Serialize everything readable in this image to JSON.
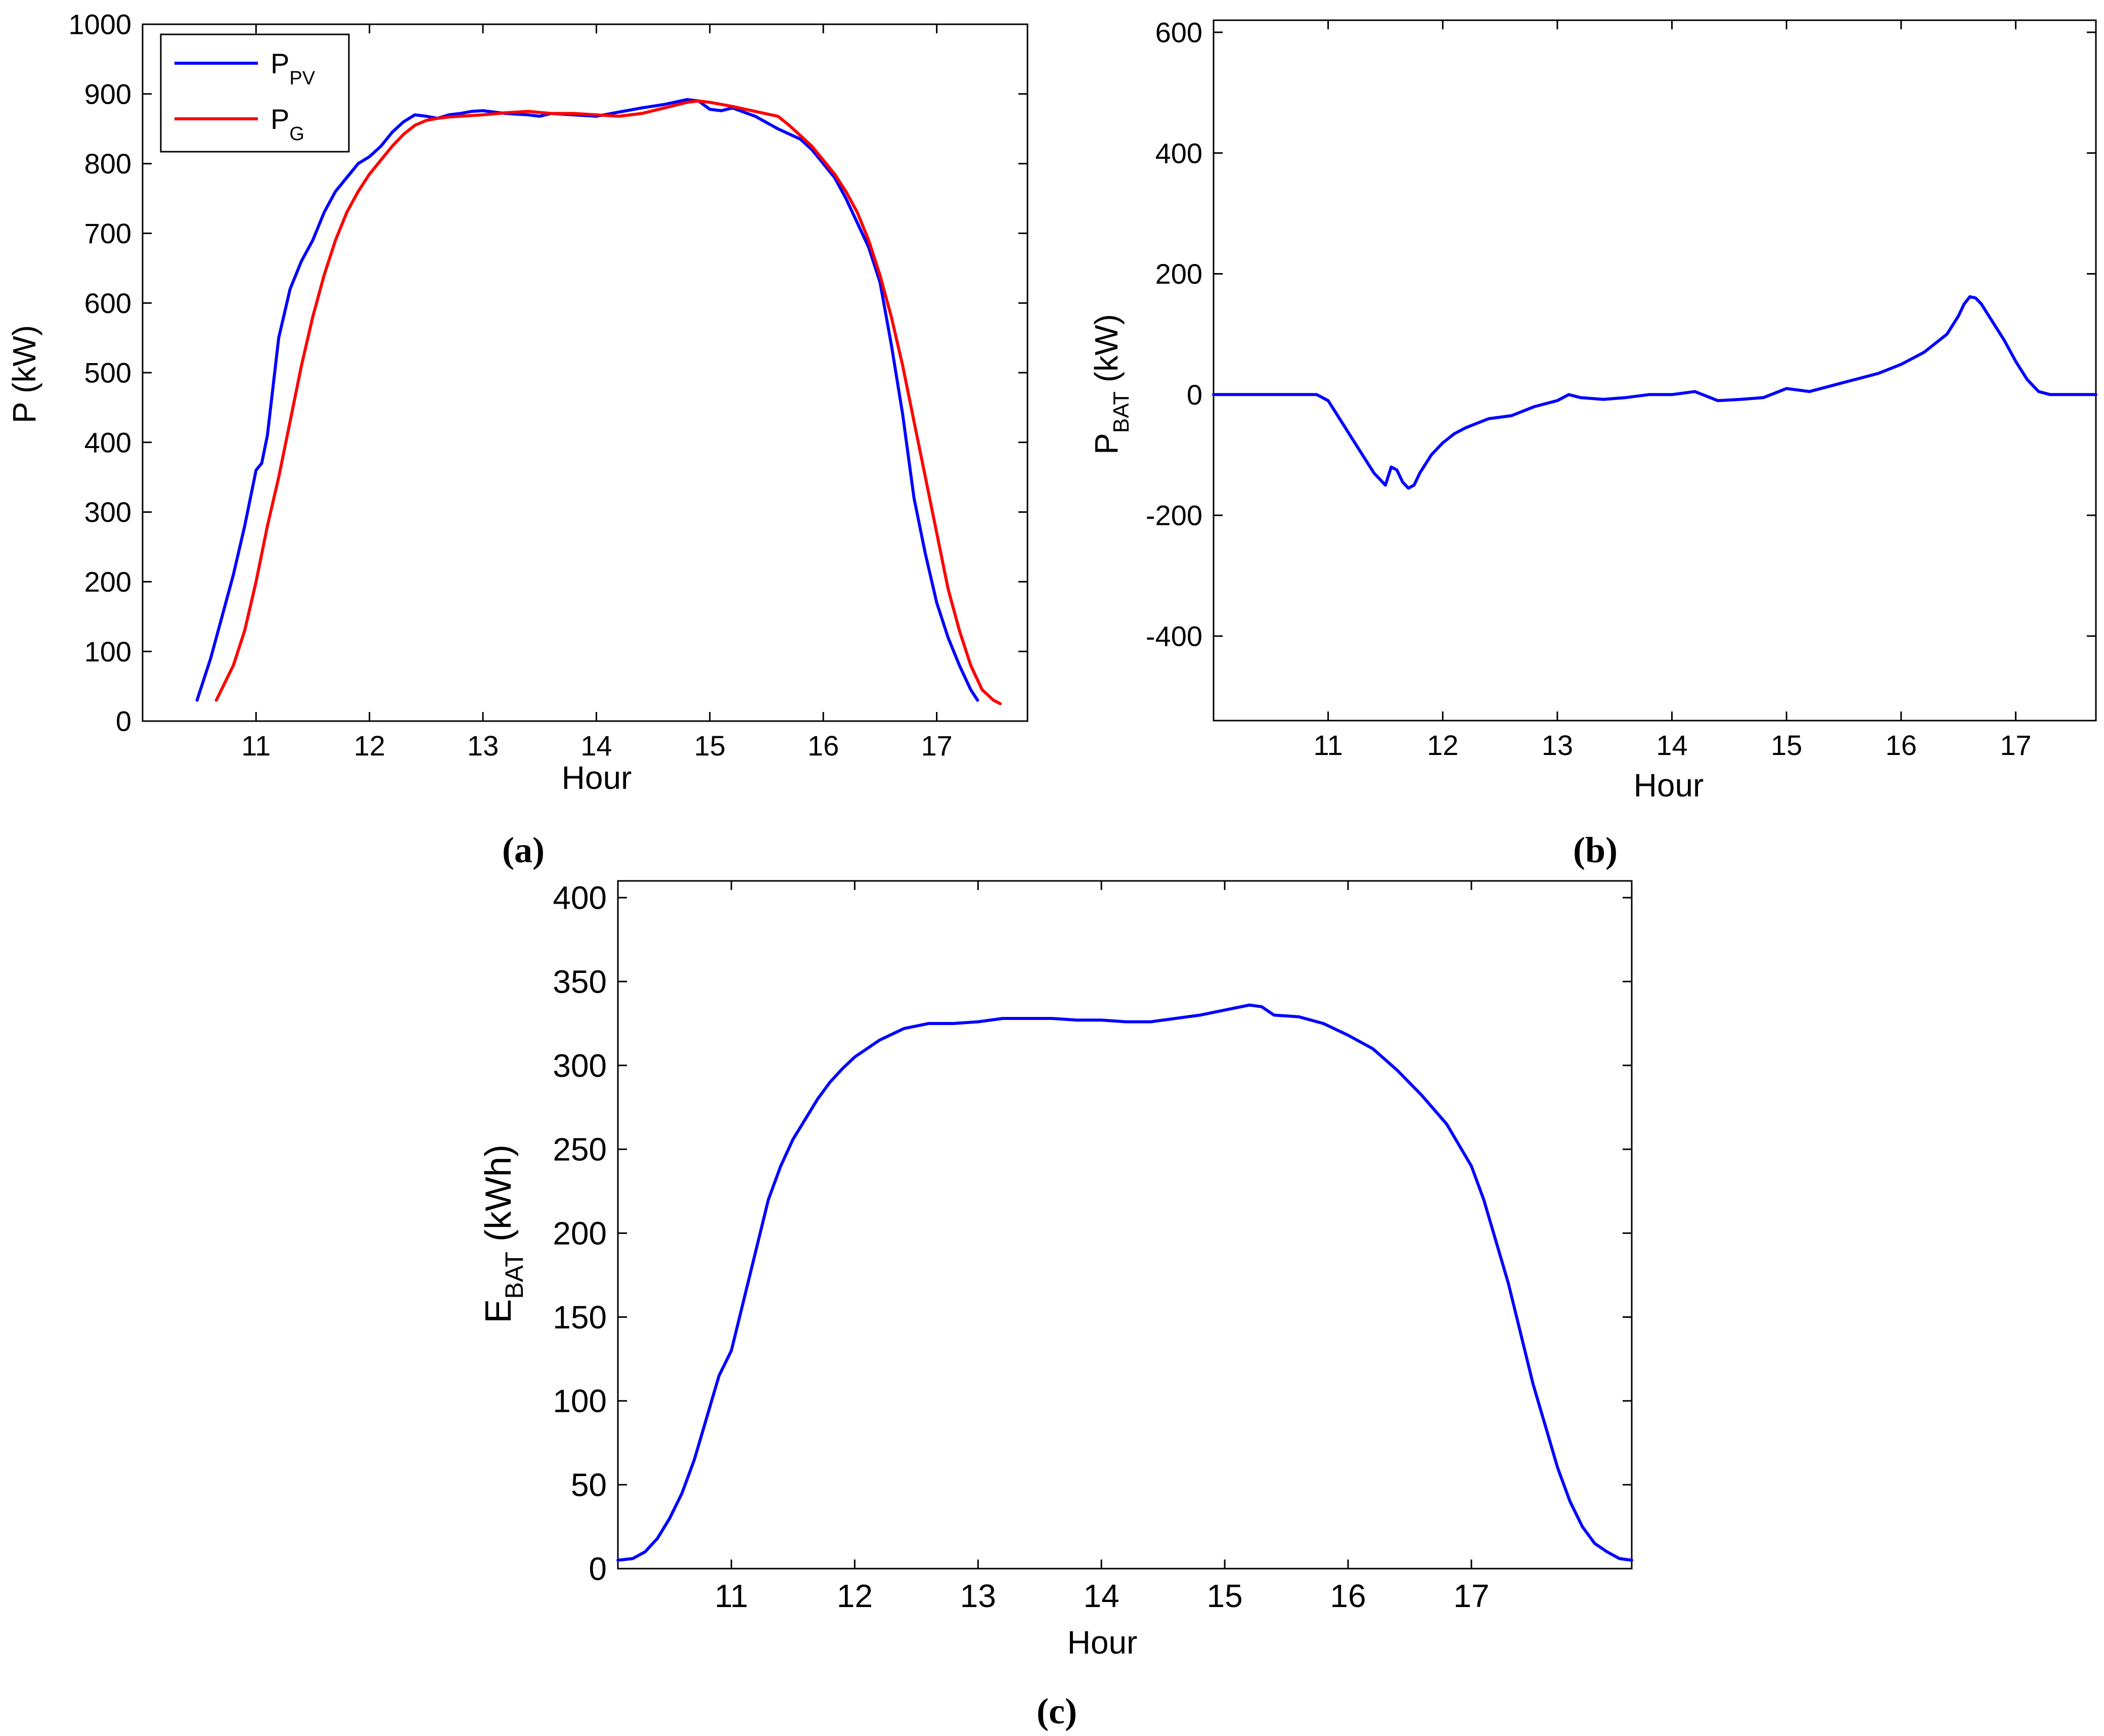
{
  "colors": {
    "ppv": "#0000ff",
    "pg": "#ff0000",
    "axis": "#000000",
    "background": "#ffffff"
  },
  "chart_data": [
    {
      "id": "a",
      "type": "line",
      "caption_letter": "a",
      "xlabel": "Hour",
      "ylabel": "P (kW)",
      "xlim": [
        10.0,
        17.8
      ],
      "ylim": [
        0,
        1000
      ],
      "xticks": [
        11,
        12,
        13,
        14,
        15,
        16,
        17
      ],
      "yticks": [
        0,
        100,
        200,
        300,
        400,
        500,
        600,
        700,
        800,
        900,
        1000
      ],
      "grid": false,
      "legend_position": "top-left",
      "series": [
        {
          "name": "P_PV",
          "legend_main": "P",
          "legend_sub": "PV",
          "color_key": "ppv",
          "x": [
            10.48,
            10.6,
            10.7,
            10.8,
            10.9,
            11.0,
            11.05,
            11.1,
            11.15,
            11.2,
            11.3,
            11.4,
            11.5,
            11.6,
            11.7,
            11.8,
            11.9,
            12.0,
            12.1,
            12.2,
            12.3,
            12.4,
            12.5,
            12.6,
            12.7,
            12.8,
            12.9,
            13.0,
            13.2,
            13.4,
            13.5,
            13.6,
            13.8,
            14.0,
            14.2,
            14.4,
            14.6,
            14.8,
            14.9,
            15.0,
            15.1,
            15.2,
            15.4,
            15.6,
            15.8,
            15.9,
            16.0,
            16.1,
            16.2,
            16.3,
            16.4,
            16.5,
            16.6,
            16.7,
            16.8,
            16.9,
            17.0,
            17.1,
            17.2,
            17.3,
            17.36
          ],
          "y": [
            30,
            90,
            150,
            210,
            280,
            360,
            370,
            410,
            480,
            550,
            620,
            660,
            690,
            730,
            760,
            780,
            800,
            810,
            825,
            845,
            860,
            870,
            868,
            865,
            870,
            872,
            875,
            876,
            872,
            870,
            868,
            872,
            870,
            868,
            874,
            880,
            885,
            892,
            890,
            878,
            876,
            880,
            868,
            850,
            835,
            820,
            800,
            780,
            750,
            715,
            680,
            630,
            540,
            440,
            320,
            240,
            170,
            120,
            80,
            45,
            30
          ]
        },
        {
          "name": "P_G",
          "legend_main": "P",
          "legend_sub": "G",
          "color_key": "pg",
          "x": [
            10.65,
            10.8,
            10.9,
            11.0,
            11.1,
            11.2,
            11.3,
            11.4,
            11.5,
            11.6,
            11.7,
            11.8,
            11.9,
            12.0,
            12.1,
            12.2,
            12.3,
            12.4,
            12.5,
            12.6,
            12.7,
            12.8,
            13.0,
            13.2,
            13.4,
            13.6,
            13.8,
            14.0,
            14.2,
            14.4,
            14.6,
            14.8,
            14.9,
            15.0,
            15.2,
            15.4,
            15.6,
            15.7,
            15.8,
            15.9,
            16.0,
            16.1,
            16.2,
            16.3,
            16.4,
            16.5,
            16.6,
            16.7,
            16.8,
            16.9,
            17.0,
            17.1,
            17.2,
            17.3,
            17.4,
            17.5,
            17.56
          ],
          "y": [
            30,
            80,
            130,
            200,
            280,
            350,
            430,
            510,
            580,
            640,
            690,
            730,
            760,
            785,
            805,
            825,
            842,
            855,
            862,
            865,
            867,
            868,
            870,
            873,
            875,
            872,
            872,
            870,
            868,
            872,
            880,
            888,
            890,
            888,
            882,
            875,
            868,
            855,
            840,
            825,
            805,
            785,
            760,
            730,
            690,
            640,
            580,
            510,
            430,
            350,
            270,
            190,
            130,
            80,
            45,
            30,
            25
          ]
        }
      ]
    },
    {
      "id": "b",
      "type": "line",
      "caption_letter": "b",
      "xlabel": "Hour",
      "ylabel_main": "P",
      "ylabel_sub": "BAT",
      "ylabel_unit": " (kW)",
      "xlim": [
        10.0,
        17.7
      ],
      "ylim": [
        -540,
        620
      ],
      "xticks": [
        11,
        12,
        13,
        14,
        15,
        16,
        17
      ],
      "yticks": [
        -400,
        -200,
        0,
        200,
        400,
        600
      ],
      "grid": false,
      "series": [
        {
          "name": "P_BAT",
          "color_key": "ppv",
          "x": [
            10.0,
            10.5,
            10.9,
            11.0,
            11.1,
            11.2,
            11.3,
            11.4,
            11.5,
            11.55,
            11.6,
            11.65,
            11.7,
            11.75,
            11.8,
            11.9,
            12.0,
            12.1,
            12.2,
            12.4,
            12.6,
            12.8,
            13.0,
            13.1,
            13.2,
            13.4,
            13.6,
            13.8,
            14.0,
            14.2,
            14.4,
            14.6,
            14.8,
            15.0,
            15.2,
            15.4,
            15.6,
            15.8,
            16.0,
            16.2,
            16.4,
            16.5,
            16.55,
            16.6,
            16.65,
            16.7,
            16.8,
            16.9,
            17.0,
            17.1,
            17.2,
            17.3,
            17.4,
            17.5,
            17.7
          ],
          "y": [
            0,
            0,
            0,
            -10,
            -40,
            -70,
            -100,
            -130,
            -150,
            -120,
            -125,
            -145,
            -155,
            -150,
            -130,
            -100,
            -80,
            -65,
            -55,
            -40,
            -35,
            -20,
            -10,
            0,
            -5,
            -8,
            -5,
            0,
            0,
            5,
            -10,
            -8,
            -5,
            10,
            5,
            15,
            25,
            35,
            50,
            70,
            100,
            130,
            150,
            162,
            160,
            150,
            120,
            90,
            55,
            25,
            5,
            0,
            0,
            0,
            0
          ]
        }
      ]
    },
    {
      "id": "c",
      "type": "line",
      "caption_letter": "c",
      "xlabel": "Hour",
      "ylabel_main": "E",
      "ylabel_sub": "BAT",
      "ylabel_unit": " (kWh)",
      "xlim": [
        10.08,
        18.3
      ],
      "ylim": [
        0,
        410
      ],
      "xticks": [
        11,
        12,
        13,
        14,
        15,
        16,
        17
      ],
      "yticks": [
        0,
        50,
        100,
        150,
        200,
        250,
        300,
        350,
        400
      ],
      "grid": false,
      "series": [
        {
          "name": "E_BAT",
          "color_key": "ppv",
          "x": [
            10.08,
            10.2,
            10.3,
            10.4,
            10.5,
            10.6,
            10.7,
            10.8,
            10.9,
            11.0,
            11.1,
            11.2,
            11.3,
            11.4,
            11.5,
            11.6,
            11.7,
            11.8,
            11.9,
            12.0,
            12.2,
            12.4,
            12.6,
            12.7,
            12.8,
            13.0,
            13.2,
            13.4,
            13.6,
            13.8,
            14.0,
            14.2,
            14.4,
            14.6,
            14.8,
            15.0,
            15.2,
            15.3,
            15.4,
            15.6,
            15.8,
            16.0,
            16.2,
            16.4,
            16.6,
            16.8,
            17.0,
            17.1,
            17.2,
            17.3,
            17.4,
            17.5,
            17.6,
            17.7,
            17.8,
            17.9,
            18.0,
            18.1,
            18.2,
            18.3
          ],
          "y": [
            5,
            6,
            10,
            18,
            30,
            45,
            65,
            90,
            115,
            130,
            160,
            190,
            220,
            240,
            256,
            268,
            280,
            290,
            298,
            305,
            315,
            322,
            325,
            325,
            325,
            326,
            328,
            328,
            328,
            327,
            327,
            326,
            326,
            328,
            330,
            333,
            336,
            335,
            330,
            329,
            325,
            318,
            310,
            297,
            282,
            265,
            240,
            220,
            195,
            170,
            140,
            110,
            85,
            60,
            40,
            25,
            15,
            10,
            6,
            5
          ]
        }
      ]
    }
  ]
}
